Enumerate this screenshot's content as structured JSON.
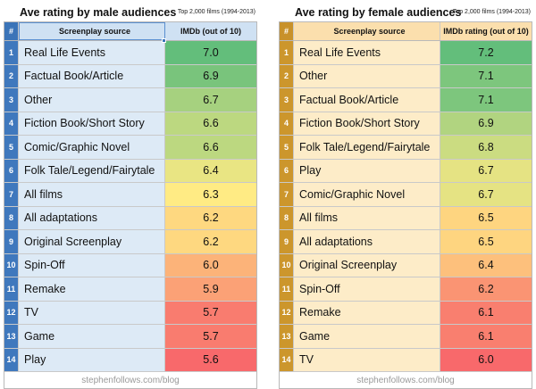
{
  "chart_data": [
    {
      "type": "table",
      "title": "Ave rating by male audiences",
      "subtitle": "Top 2,000 films (1994-2013)",
      "columns": [
        "#",
        "Screenplay source",
        "IMDb (out of 10)"
      ],
      "rows": [
        {
          "rank": "1",
          "source": "Real Life Events",
          "rating": 7.0
        },
        {
          "rank": "2",
          "source": "Factual Book/Article",
          "rating": 6.9
        },
        {
          "rank": "3",
          "source": "Other",
          "rating": 6.7
        },
        {
          "rank": "4",
          "source": "Fiction Book/Short Story",
          "rating": 6.6
        },
        {
          "rank": "5",
          "source": "Comic/Graphic Novel",
          "rating": 6.6
        },
        {
          "rank": "6",
          "source": "Folk Tale/Legend/Fairytale",
          "rating": 6.4
        },
        {
          "rank": "7",
          "source": "All films",
          "rating": 6.3
        },
        {
          "rank": "8",
          "source": "All adaptations",
          "rating": 6.2
        },
        {
          "rank": "9",
          "source": "Original Screenplay",
          "rating": 6.2
        },
        {
          "rank": "10",
          "source": "Spin-Off",
          "rating": 6.0
        },
        {
          "rank": "11",
          "source": "Remake",
          "rating": 5.9
        },
        {
          "rank": "12",
          "source": "TV",
          "rating": 5.7
        },
        {
          "rank": "13",
          "source": "Game",
          "rating": 5.7
        },
        {
          "rank": "14",
          "source": "Play",
          "rating": 5.6
        }
      ],
      "footer": "stephenfollows.com/blog"
    },
    {
      "type": "table",
      "title": "Ave rating by female audiences",
      "subtitle": "Top 2,000 films (1994-2013)",
      "columns": [
        "#",
        "Screenplay source",
        "IMDb rating (out of 10)"
      ],
      "rows": [
        {
          "rank": "1",
          "source": "Real Life Events",
          "rating": 7.2
        },
        {
          "rank": "2",
          "source": "Other",
          "rating": 7.1
        },
        {
          "rank": "3",
          "source": "Factual Book/Article",
          "rating": 7.1
        },
        {
          "rank": "4",
          "source": "Fiction Book/Short Story",
          "rating": 6.9
        },
        {
          "rank": "5",
          "source": "Folk Tale/Legend/Fairytale",
          "rating": 6.8
        },
        {
          "rank": "6",
          "source": "Play",
          "rating": 6.7
        },
        {
          "rank": "7",
          "source": "Comic/Graphic Novel",
          "rating": 6.7
        },
        {
          "rank": "8",
          "source": "All films",
          "rating": 6.5
        },
        {
          "rank": "9",
          "source": "All adaptations",
          "rating": 6.5
        },
        {
          "rank": "10",
          "source": "Original Screenplay",
          "rating": 6.4
        },
        {
          "rank": "11",
          "source": "Spin-Off",
          "rating": 6.2
        },
        {
          "rank": "12",
          "source": "Remake",
          "rating": 6.1
        },
        {
          "rank": "13",
          "source": "Game",
          "rating": 6.1
        },
        {
          "rank": "14",
          "source": "TV",
          "rating": 6.0
        }
      ],
      "footer": "stephenfollows.com/blog"
    }
  ],
  "colors": {
    "scale_high": "#63be7b",
    "scale_mid": "#ffeb84",
    "scale_low": "#f8696b",
    "male_accent": "#3f78bd",
    "female_accent": "#cc962c"
  }
}
